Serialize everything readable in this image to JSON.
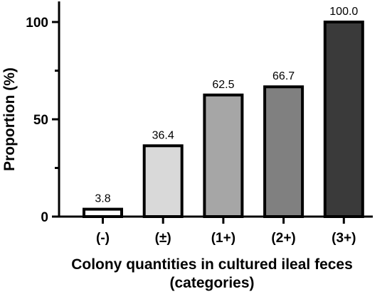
{
  "chart_data": {
    "type": "bar",
    "title": "",
    "xlabel_lines": [
      "Colony quantities in cultured ileal feces",
      "(categories)"
    ],
    "ylabel": "Proportion (%)",
    "ylim": [
      0,
      100
    ],
    "yticks": [
      0,
      50,
      100
    ],
    "categories": [
      "(-)",
      "(±)",
      "(1+)",
      "(2+)",
      "(3+)"
    ],
    "values": [
      3.8,
      36.4,
      62.5,
      66.7,
      100.0
    ],
    "value_labels": [
      "3.8",
      "36.4",
      "62.5",
      "66.7",
      "100.0"
    ],
    "bar_colors": [
      "#ffffff",
      "#d9d9d9",
      "#a6a6a6",
      "#808080",
      "#3a3a3a"
    ],
    "grid": false,
    "legend": "none"
  }
}
